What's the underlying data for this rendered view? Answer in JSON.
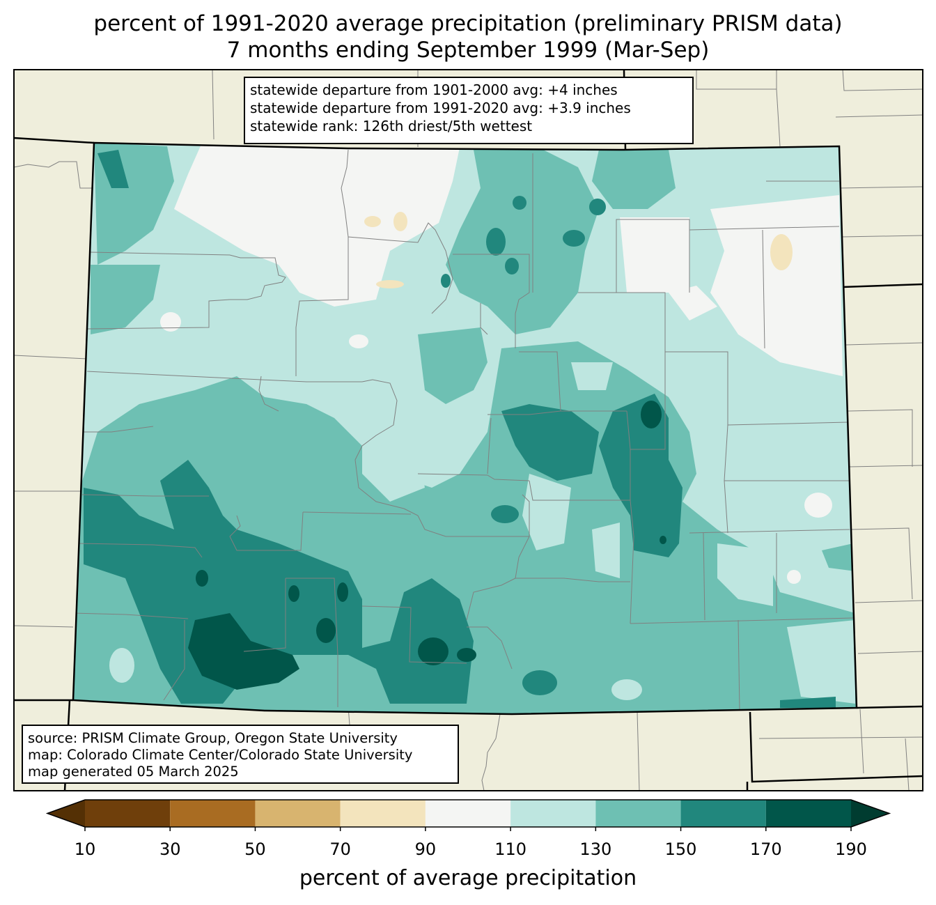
{
  "title": {
    "line1": "percent of 1991-2020 average precipitation (preliminary PRISM data)",
    "line2": "7 months ending September 1999 (Mar-Sep)"
  },
  "stats": {
    "line1": "statewide departure from 1901-2000 avg: +4 inches",
    "line2": "statewide departure from 1991-2020 avg: +3.9 inches",
    "line3": "statewide rank: 126th driest/5th wettest"
  },
  "credits": {
    "line1": "source: PRISM Climate Group, Oregon State University",
    "line2": "map: Colorado Climate Center/Colorado State University",
    "line3": "map generated 05 March 2025"
  },
  "colorbar": {
    "label": "percent of average precipitation",
    "ticks": [
      "10",
      "30",
      "50",
      "70",
      "90",
      "110",
      "130",
      "150",
      "170",
      "190"
    ],
    "under_color": "#543005",
    "over_color": "#003c30",
    "bins": [
      {
        "from": 10,
        "to": 30,
        "color": "#6f3f0b"
      },
      {
        "from": 30,
        "to": 50,
        "color": "#a96c22"
      },
      {
        "from": 50,
        "to": 70,
        "color": "#d8b46f"
      },
      {
        "from": 70,
        "to": 90,
        "color": "#f3e4bd"
      },
      {
        "from": 90,
        "to": 110,
        "color": "#f4f5f3"
      },
      {
        "from": 110,
        "to": 130,
        "color": "#bee6e0"
      },
      {
        "from": 130,
        "to": 150,
        "color": "#6ec0b3"
      },
      {
        "from": 150,
        "to": 170,
        "color": "#21877d"
      },
      {
        "from": 170,
        "to": 190,
        "color": "#01564a"
      }
    ]
  },
  "colors": {
    "land": "#efeedc",
    "county_line": "#808080",
    "state_line": "#000000"
  }
}
